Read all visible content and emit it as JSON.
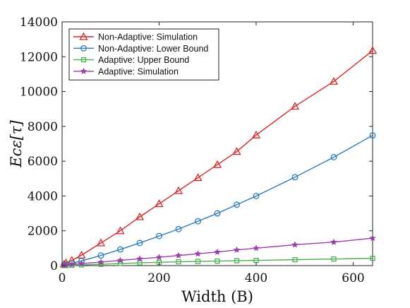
{
  "chart_data": {
    "type": "line",
    "xlabel": "Width (B)",
    "ylabel": "Ecε[τ]",
    "xlim": [
      0,
      640
    ],
    "ylim": [
      0,
      14000
    ],
    "xticks": [
      0,
      200,
      400,
      600
    ],
    "yticks": [
      0,
      2000,
      4000,
      6000,
      8000,
      10000,
      12000,
      14000
    ],
    "grid": false,
    "legend_position": "top-left",
    "x": [
      4,
      8,
      20,
      40,
      80,
      120,
      160,
      200,
      240,
      280,
      320,
      360,
      400,
      480,
      560,
      640
    ],
    "series": [
      {
        "name": "Non-Adaptive: Simulation",
        "color": "#d62728",
        "marker": "triangle",
        "values": [
          80,
          160,
          300,
          600,
          1300,
          2000,
          2800,
          3550,
          4300,
          5050,
          5800,
          6550,
          7500,
          9150,
          10580,
          12350
        ]
      },
      {
        "name": "Non-Adaptive: Lower Bound",
        "color": "#2b7bba",
        "marker": "circle",
        "values": [
          40,
          60,
          130,
          270,
          580,
          930,
          1300,
          1700,
          2100,
          2550,
          3000,
          3500,
          4000,
          5080,
          6230,
          7480
        ]
      },
      {
        "name": "Adaptive: Upper Bound",
        "color": "#4caf50",
        "marker": "square",
        "values": [
          5,
          10,
          20,
          40,
          80,
          120,
          160,
          190,
          220,
          240,
          260,
          280,
          300,
          340,
          380,
          420
        ]
      },
      {
        "name": "Adaptive: Simulation",
        "color": "#9b3fa8",
        "marker": "star",
        "values": [
          20,
          40,
          70,
          120,
          200,
          300,
          390,
          480,
          580,
          680,
          780,
          900,
          1000,
          1200,
          1350,
          1580
        ]
      }
    ]
  }
}
